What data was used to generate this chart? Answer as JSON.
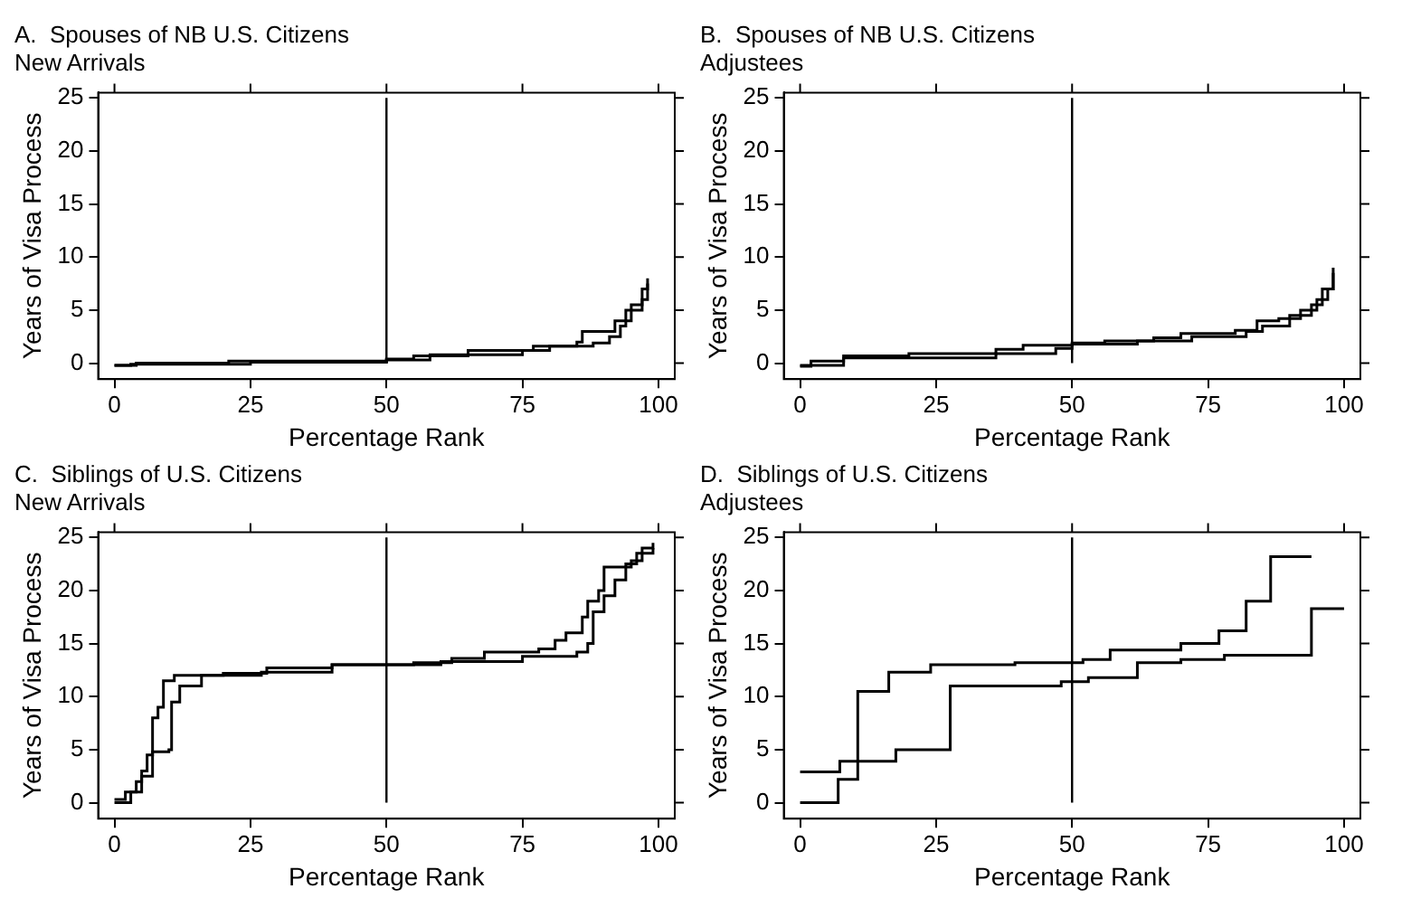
{
  "chart_data": [
    {
      "type": "step",
      "title": "A.  Spouses of NB U.S. Citizens",
      "subtitle": "New Arrivals",
      "xlabel": "Percentage Rank",
      "ylabel": "Years of Visa Process",
      "xlim": [
        -3,
        103
      ],
      "ylim": [
        -1.5,
        25.5
      ],
      "xticks": [
        0,
        25,
        50,
        75,
        100
      ],
      "yticks": [
        0,
        5,
        10,
        15,
        20,
        25
      ],
      "ref_lines": [
        {
          "axis": "x",
          "value": 50,
          "color": "#000000"
        }
      ],
      "series": [
        {
          "color": "#000000",
          "x": [
            0,
            4,
            21,
            50,
            55,
            65,
            77,
            85,
            86,
            92,
            95,
            97,
            98
          ],
          "values": [
            -0.2,
            0,
            0.2,
            0.4,
            0.7,
            1.2,
            1.6,
            2,
            3,
            4,
            5.5,
            7,
            8
          ]
        },
        {
          "color": "#000000",
          "x": [
            0,
            3,
            25,
            50,
            58,
            75,
            80,
            88,
            91,
            93,
            94,
            97,
            98
          ],
          "values": [
            -0.2,
            -0.1,
            0.1,
            0.3,
            0.8,
            1.2,
            1.6,
            1.9,
            2.5,
            3.5,
            5,
            6,
            7.5
          ]
        }
      ]
    },
    {
      "type": "step",
      "title": "B.  Spouses of NB U.S. Citizens",
      "subtitle": "Adjustees",
      "xlabel": "Percentage Rank",
      "ylabel": "Years of Visa Process",
      "xlim": [
        -3,
        103
      ],
      "ylim": [
        -1.5,
        25.5
      ],
      "xticks": [
        0,
        25,
        50,
        75,
        100
      ],
      "yticks": [
        0,
        5,
        10,
        15,
        20,
        25
      ],
      "ref_lines": [
        {
          "axis": "x",
          "value": 50,
          "color": "#000000"
        }
      ],
      "series": [
        {
          "color": "#000000",
          "x": [
            0,
            2,
            8,
            20,
            36,
            41,
            50,
            56,
            65,
            70,
            80,
            84,
            88,
            92,
            95,
            97,
            98
          ],
          "values": [
            -0.3,
            0.2,
            0.7,
            0.9,
            1.3,
            1.7,
            1.9,
            2.1,
            2.4,
            2.8,
            3.1,
            4,
            4.2,
            5,
            6,
            7,
            9
          ]
        },
        {
          "color": "#000000",
          "x": [
            0,
            8,
            36,
            47,
            50,
            62,
            72,
            82,
            85,
            90,
            94,
            96,
            98
          ],
          "values": [
            -0.2,
            0.5,
            0.9,
            1.4,
            1.8,
            2.1,
            2.5,
            3,
            3.5,
            4.5,
            5.5,
            7,
            8.5
          ]
        }
      ]
    },
    {
      "type": "step",
      "title": "C.  Siblings of U.S. Citizens",
      "subtitle": "New Arrivals",
      "xlabel": "Percentage Rank",
      "ylabel": "Years of Visa Process",
      "xlim": [
        -3,
        103
      ],
      "ylim": [
        -1.5,
        25.5
      ],
      "xticks": [
        0,
        25,
        50,
        75,
        100
      ],
      "yticks": [
        0,
        5,
        10,
        15,
        20,
        25
      ],
      "ref_lines": [
        {
          "axis": "x",
          "value": 50,
          "color": "#000000"
        }
      ],
      "series": [
        {
          "color": "#000000",
          "x": [
            0,
            2,
            4,
            5,
            6,
            7,
            8,
            9,
            11,
            20,
            28,
            40,
            55,
            62,
            68,
            78,
            81,
            83,
            86,
            87,
            89,
            90,
            95,
            97,
            99
          ],
          "values": [
            0.3,
            1,
            2,
            3,
            4.5,
            8,
            9,
            11.5,
            12,
            12.2,
            12.7,
            13,
            13.2,
            13.6,
            14.2,
            14.5,
            15.3,
            16,
            17.5,
            19,
            20,
            22.2,
            22.8,
            24,
            24.5
          ]
        },
        {
          "color": "#000000",
          "x": [
            0,
            3,
            5,
            7,
            10,
            10.5,
            12,
            16,
            27,
            40,
            60,
            75,
            85,
            87,
            88,
            90,
            92,
            94,
            96,
            99
          ],
          "values": [
            0,
            1,
            2.5,
            4.8,
            5,
            9.5,
            11,
            12,
            12.3,
            13,
            13.3,
            13.8,
            14.2,
            15,
            18,
            19.5,
            21,
            22.5,
            23.5,
            24
          ]
        }
      ]
    },
    {
      "type": "step",
      "title": "D.  Siblings of U.S. Citizens",
      "subtitle": "Adjustees",
      "xlabel": "Percentage Rank",
      "ylabel": "Years of Visa Process",
      "xlim": [
        -3,
        103
      ],
      "ylim": [
        -1.5,
        25.5
      ],
      "xticks": [
        0,
        25,
        50,
        75,
        100
      ],
      "yticks": [
        0,
        5,
        10,
        15,
        20,
        25
      ],
      "ref_lines": [
        {
          "axis": "x",
          "value": 50,
          "color": "#000000"
        }
      ],
      "series": [
        {
          "color": "#000000",
          "x": [
            0,
            7,
            10.6,
            16.3,
            24,
            39.5,
            52,
            57,
            70,
            77,
            82,
            86.5,
            94
          ],
          "values": [
            0,
            2.2,
            10.5,
            12.3,
            13,
            13.2,
            13.5,
            14.4,
            15,
            16.2,
            19,
            23.2,
            23.2
          ]
        },
        {
          "color": "#000000",
          "x": [
            0,
            7.3,
            17.6,
            27.6,
            48,
            53,
            62,
            70,
            78,
            94,
            100
          ],
          "values": [
            2.9,
            3.9,
            5,
            11,
            11.4,
            11.8,
            13.2,
            13.5,
            13.9,
            18.3,
            18.3
          ]
        }
      ]
    }
  ]
}
